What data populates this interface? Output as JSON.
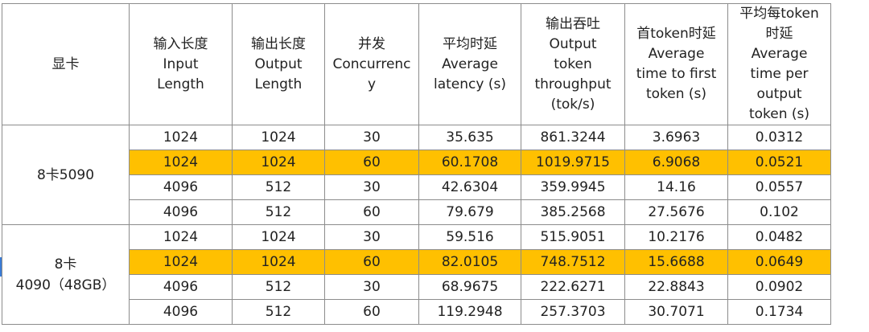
{
  "headers": [
    "显卡",
    "输入长度 Input Length",
    "输出长度 Output Length",
    "并发 Concurrency",
    "平均时延 Average latency (s)",
    "输出吞吐 Output token throughput (tok/s)",
    "首token时延 Average time to first token (s)",
    "平均每token时延 Average time per output token (s)"
  ],
  "header_lines": [
    [
      "显卡"
    ],
    [
      "输入长度",
      "Input",
      "Length"
    ],
    [
      "输出长度",
      "Output",
      "Length"
    ],
    [
      "并发",
      "Concurrenc",
      "y"
    ],
    [
      "平均时延",
      "Average",
      "latency (s)"
    ],
    [
      "输出吞吐",
      "Output",
      "token",
      "throughput",
      "(tok/s)"
    ],
    [
      "首token时延",
      "Average",
      "time to first",
      "token (s)"
    ],
    [
      "平均每token",
      "时延",
      "Average",
      "time per",
      "output",
      "token (s)"
    ]
  ],
  "groups": [
    {
      "gpu": [
        "8卡5090"
      ],
      "rows": [
        {
          "input": "1024",
          "output": "1024",
          "concurrency": "30",
          "latency": "35.635",
          "throughput": "861.3244",
          "ttft": "3.6963",
          "tpot": "0.0312",
          "highlight": false
        },
        {
          "input": "1024",
          "output": "1024",
          "concurrency": "60",
          "latency": "60.1708",
          "throughput": "1019.9715",
          "ttft": "6.9068",
          "tpot": "0.0521",
          "highlight": true
        },
        {
          "input": "4096",
          "output": "512",
          "concurrency": "30",
          "latency": "42.6304",
          "throughput": "359.9945",
          "ttft": "14.16",
          "tpot": "0.0557",
          "highlight": false
        },
        {
          "input": "4096",
          "output": "512",
          "concurrency": "60",
          "latency": "79.679",
          "throughput": "385.2568",
          "ttft": "27.5676",
          "tpot": "0.102",
          "highlight": false
        }
      ]
    },
    {
      "gpu": [
        "8卡",
        "4090（48GB）"
      ],
      "rows": [
        {
          "input": "1024",
          "output": "1024",
          "concurrency": "30",
          "latency": "59.516",
          "throughput": "515.9051",
          "ttft": "10.2176",
          "tpot": "0.0482",
          "highlight": false
        },
        {
          "input": "1024",
          "output": "1024",
          "concurrency": "60",
          "latency": "82.0105",
          "throughput": "748.7512",
          "ttft": "15.6688",
          "tpot": "0.0649",
          "highlight": true
        },
        {
          "input": "4096",
          "output": "512",
          "concurrency": "30",
          "latency": "68.9675",
          "throughput": "222.6271",
          "ttft": "22.8843",
          "tpot": "0.0902",
          "highlight": false
        },
        {
          "input": "4096",
          "output": "512",
          "concurrency": "60",
          "latency": "119.2948",
          "throughput": "257.3703",
          "ttft": "30.7071",
          "tpot": "0.1734",
          "highlight": false
        }
      ]
    }
  ],
  "colors": {
    "highlight": "#FFC000",
    "border": "#8c8c8c",
    "text": "#222222"
  }
}
